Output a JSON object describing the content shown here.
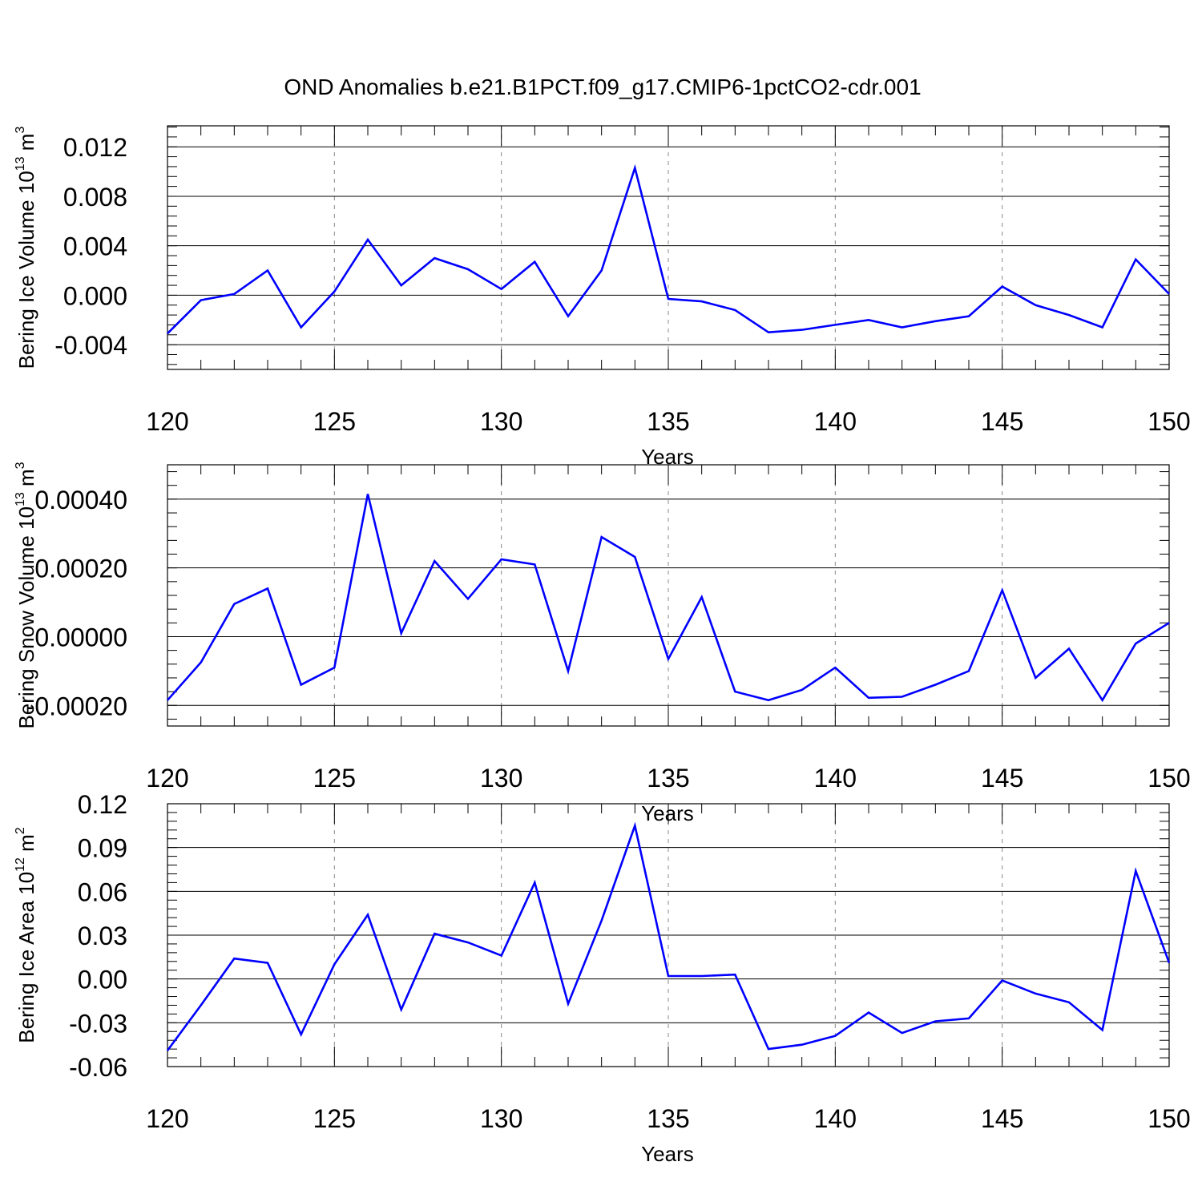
{
  "title": "OND Anomalies b.e21.B1PCT.f09_g17.CMIP6-1pctCO2-cdr.001",
  "colors": {
    "line": "#0000ff",
    "axis": "#000000",
    "grid": "#888888"
  },
  "chart_data": [
    {
      "type": "line",
      "xlabel": "Years",
      "ylabel": {
        "main": "Bering Ice Volume 10",
        "exp": "13",
        "unit": " m",
        "unit_exp": "3"
      },
      "xlim": [
        120,
        150
      ],
      "ylim": [
        -0.006,
        0.0137
      ],
      "xticks": [
        120,
        125,
        130,
        135,
        140,
        145,
        150
      ],
      "xtick_labels": [
        "120",
        "125",
        "130",
        "135",
        "140",
        "145",
        "150"
      ],
      "yticks": [
        -0.004,
        0.0,
        0.004,
        0.008,
        0.012
      ],
      "ytick_labels": [
        "-0.004",
        "0.000",
        "0.004",
        "0.008",
        "0.012"
      ],
      "x": [
        120,
        121,
        122,
        123,
        124,
        125,
        126,
        127,
        128,
        129,
        130,
        131,
        132,
        133,
        134,
        135,
        136,
        137,
        138,
        139,
        140,
        141,
        142,
        143,
        144,
        145,
        146,
        147,
        148,
        149,
        150
      ],
      "values": [
        -0.0031,
        -0.0004,
        0.0001,
        0.002,
        -0.0026,
        0.0003,
        0.0045,
        0.0008,
        0.003,
        0.0021,
        0.0005,
        0.0027,
        -0.0017,
        0.002,
        0.0103,
        -0.0003,
        -0.0005,
        -0.0012,
        -0.003,
        -0.0028,
        -0.0024,
        -0.002,
        -0.0026,
        -0.0021,
        -0.0017,
        0.0007,
        -0.0008,
        -0.0016,
        -0.0026,
        0.0029,
        0.0001
      ]
    },
    {
      "type": "line",
      "xlabel": "Years",
      "ylabel": {
        "main": "Bering Snow Volume 10",
        "exp": "13",
        "unit": " m",
        "unit_exp": "3"
      },
      "xlim": [
        120,
        150
      ],
      "ylim": [
        -0.00026,
        0.0005
      ],
      "xticks": [
        120,
        125,
        130,
        135,
        140,
        145,
        150
      ],
      "xtick_labels": [
        "120",
        "125",
        "130",
        "135",
        "140",
        "145",
        "150"
      ],
      "yticks": [
        -0.0002,
        0.0,
        0.0002,
        0.0004
      ],
      "ytick_labels": [
        "-0.00020",
        "0.00000",
        "0.00020",
        "0.00040"
      ],
      "x": [
        120,
        121,
        122,
        123,
        124,
        125,
        126,
        127,
        128,
        129,
        130,
        131,
        132,
        133,
        134,
        135,
        136,
        137,
        138,
        139,
        140,
        141,
        142,
        143,
        144,
        145,
        146,
        147,
        148,
        149,
        150
      ],
      "values": [
        -0.000185,
        -7.5e-05,
        9.5e-05,
        0.00014,
        -0.00014,
        -9e-05,
        0.000415,
        1e-05,
        0.00022,
        0.00011,
        0.000225,
        0.00021,
        -0.0001,
        0.00029,
        0.000232,
        -6.5e-05,
        0.000115,
        -0.00016,
        -0.000185,
        -0.000155,
        -9e-05,
        -0.000178,
        -0.000175,
        -0.00014,
        -0.0001,
        0.000135,
        -0.00012,
        -3.5e-05,
        -0.000185,
        -2e-05,
        4e-05
      ]
    },
    {
      "type": "line",
      "xlabel": "Years",
      "ylabel": {
        "main": "Bering Ice Area 10",
        "exp": "12",
        "unit": " m",
        "unit_exp": "2"
      },
      "xlim": [
        120,
        150
      ],
      "ylim": [
        -0.06,
        0.12
      ],
      "xticks": [
        120,
        125,
        130,
        135,
        140,
        145,
        150
      ],
      "xtick_labels": [
        "120",
        "125",
        "130",
        "135",
        "140",
        "145",
        "150"
      ],
      "yticks": [
        -0.06,
        -0.03,
        0.0,
        0.03,
        0.06,
        0.09,
        0.12
      ],
      "ytick_labels": [
        "-0.06",
        "-0.03",
        "0.00",
        "0.03",
        "0.06",
        "0.09",
        "0.12"
      ],
      "x": [
        120,
        121,
        122,
        123,
        124,
        125,
        126,
        127,
        128,
        129,
        130,
        131,
        132,
        133,
        134,
        135,
        136,
        137,
        138,
        139,
        140,
        141,
        142,
        143,
        144,
        145,
        146,
        147,
        148,
        149,
        150
      ],
      "values": [
        -0.049,
        -0.018,
        0.014,
        0.011,
        -0.038,
        0.01,
        0.044,
        -0.021,
        0.031,
        0.025,
        0.016,
        0.066,
        -0.017,
        0.04,
        0.105,
        0.002,
        0.002,
        0.003,
        -0.048,
        -0.045,
        -0.039,
        -0.023,
        -0.037,
        -0.029,
        -0.027,
        -0.001,
        -0.01,
        -0.016,
        -0.035,
        0.074,
        0.011
      ]
    }
  ]
}
